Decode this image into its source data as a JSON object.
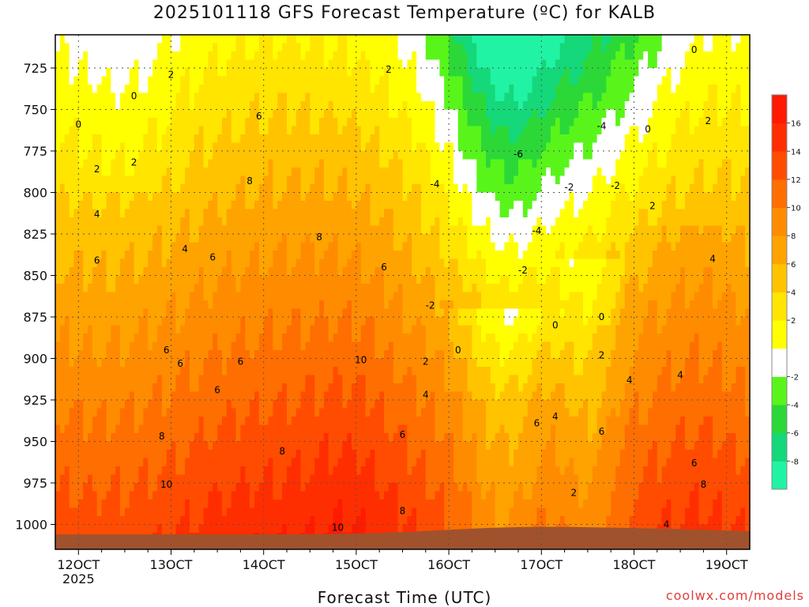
{
  "title": "2025101118 GFS Forecast Temperature (ºC) for KALB",
  "credit": "coolwx.com/models",
  "chart_data": {
    "type": "heatmap",
    "title": "2025101118 GFS Forecast Temperature (ºC) for KALB",
    "xlabel": "Forecast Time (UTC)",
    "ylabel": "",
    "x_ticks": [
      "12OCT",
      "13OCT",
      "14OCT",
      "15OCT",
      "16OCT",
      "17OCT",
      "18OCT",
      "19OCT"
    ],
    "x_tick_days": [
      12,
      13,
      14,
      15,
      16,
      17,
      18,
      19
    ],
    "x_sub_label": "2025",
    "xlim_days": [
      11.75,
      19.25
    ],
    "y_ticks": [
      725,
      750,
      775,
      800,
      825,
      850,
      875,
      900,
      925,
      950,
      975,
      1000
    ],
    "ylim_hpa": [
      705,
      1015
    ],
    "grid": true,
    "colorbar": {
      "levels": [
        -10,
        -8,
        -6,
        -4,
        -2,
        0,
        2,
        4,
        6,
        8,
        10,
        12,
        14,
        16,
        18
      ],
      "labels": [
        "-8",
        "-6",
        "-4",
        "-2",
        "2",
        "4",
        "6",
        "8",
        "10",
        "12",
        "14",
        "16"
      ],
      "label_values": [
        -8,
        -6,
        -4,
        -2,
        2,
        4,
        6,
        8,
        10,
        12,
        14,
        16
      ],
      "colors": [
        "#21f3a4",
        "#14d87a",
        "#2bd838",
        "#59f51a",
        "#ffffff",
        "#ffff00",
        "#ffe500",
        "#ffc300",
        "#ffa300",
        "#ff8c00",
        "#ff6e00",
        "#ff4c00",
        "#ff2e00",
        "#ff1a00"
      ]
    },
    "ground_color": "#a0522d",
    "freezing_line_color": "#b0206a",
    "contour_labels": [
      {
        "text": "0",
        "x": 12.0,
        "p": 759
      },
      {
        "text": "0",
        "x": 12.6,
        "p": 742
      },
      {
        "text": "2",
        "x": 12.2,
        "p": 786
      },
      {
        "text": "2",
        "x": 12.6,
        "p": 782
      },
      {
        "text": "2",
        "x": 13.0,
        "p": 729
      },
      {
        "text": "4",
        "x": 12.2,
        "p": 813
      },
      {
        "text": "4",
        "x": 13.15,
        "p": 834
      },
      {
        "text": "6",
        "x": 12.2,
        "p": 841
      },
      {
        "text": "6",
        "x": 13.45,
        "p": 839
      },
      {
        "text": "6",
        "x": 13.95,
        "p": 754
      },
      {
        "text": "6",
        "x": 12.95,
        "p": 895
      },
      {
        "text": "6",
        "x": 13.1,
        "p": 903
      },
      {
        "text": "6",
        "x": 13.5,
        "p": 919
      },
      {
        "text": "6",
        "x": 13.75,
        "p": 902
      },
      {
        "text": "6",
        "x": 15.3,
        "p": 845
      },
      {
        "text": "6",
        "x": 15.5,
        "p": 946
      },
      {
        "text": "8",
        "x": 13.85,
        "p": 793
      },
      {
        "text": "8",
        "x": 14.6,
        "p": 827
      },
      {
        "text": "8",
        "x": 12.9,
        "p": 947
      },
      {
        "text": "8",
        "x": 14.2,
        "p": 956
      },
      {
        "text": "8",
        "x": 15.5,
        "p": 992
      },
      {
        "text": "10",
        "x": 12.95,
        "p": 976
      },
      {
        "text": "10",
        "x": 14.8,
        "p": 1002
      },
      {
        "text": "10",
        "x": 15.05,
        "p": 901
      },
      {
        "text": "2",
        "x": 15.35,
        "p": 726
      },
      {
        "text": "2",
        "x": 15.75,
        "p": 902
      },
      {
        "text": "4",
        "x": 15.75,
        "p": 922
      },
      {
        "text": "-2",
        "x": 15.8,
        "p": 868
      },
      {
        "text": "0",
        "x": 16.1,
        "p": 895
      },
      {
        "text": "-4",
        "x": 15.85,
        "p": 795
      },
      {
        "text": "-6",
        "x": 16.75,
        "p": 777
      },
      {
        "text": "-4",
        "x": 16.95,
        "p": 823
      },
      {
        "text": "-2",
        "x": 16.8,
        "p": 847
      },
      {
        "text": "0",
        "x": 17.15,
        "p": 880
      },
      {
        "text": "6",
        "x": 16.95,
        "p": 939
      },
      {
        "text": "4",
        "x": 17.15,
        "p": 935
      },
      {
        "text": "2",
        "x": 17.35,
        "p": 981
      },
      {
        "text": "-2",
        "x": 17.3,
        "p": 797
      },
      {
        "text": "-2",
        "x": 17.8,
        "p": 796
      },
      {
        "text": "-4",
        "x": 17.65,
        "p": 760
      },
      {
        "text": "0",
        "x": 18.15,
        "p": 762
      },
      {
        "text": "0",
        "x": 17.65,
        "p": 875
      },
      {
        "text": "2",
        "x": 17.65,
        "p": 898
      },
      {
        "text": "2",
        "x": 18.2,
        "p": 808
      },
      {
        "text": "6",
        "x": 17.65,
        "p": 944
      },
      {
        "text": "4",
        "x": 17.95,
        "p": 913
      },
      {
        "text": "4",
        "x": 18.5,
        "p": 910
      },
      {
        "text": "4",
        "x": 18.85,
        "p": 840
      },
      {
        "text": "2",
        "x": 18.8,
        "p": 757
      },
      {
        "text": "0",
        "x": 18.65,
        "p": 714
      },
      {
        "text": "6",
        "x": 18.65,
        "p": 963
      },
      {
        "text": "8",
        "x": 18.75,
        "p": 976
      },
      {
        "text": "4",
        "x": 18.35,
        "p": 1000
      }
    ]
  }
}
